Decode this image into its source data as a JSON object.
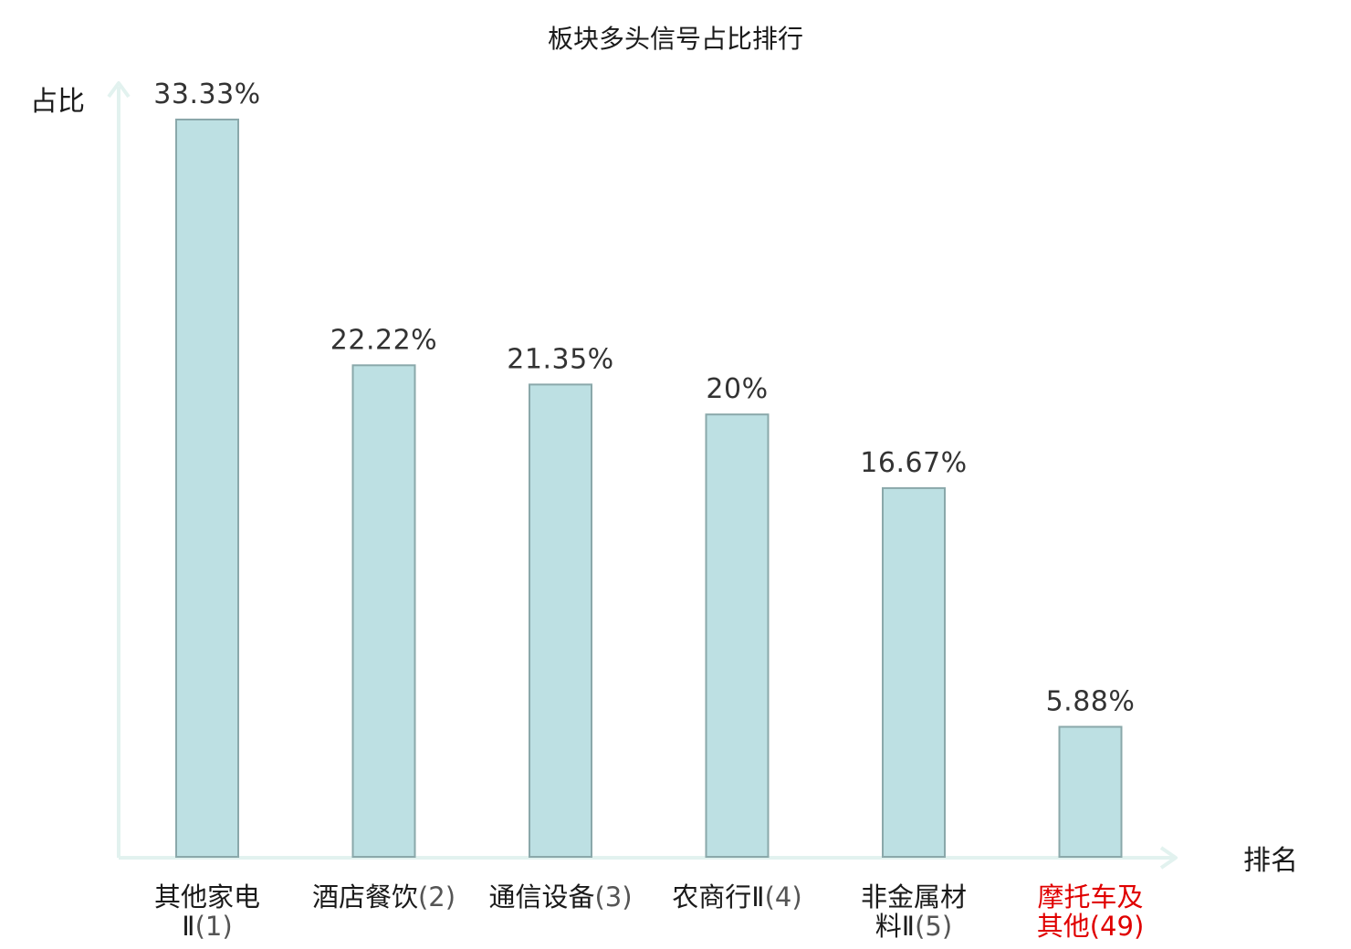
{
  "chart_data": {
    "type": "bar",
    "title": "板块多头信号占比排行",
    "ylabel": "占比",
    "xlabel": "排名",
    "categories": [
      {
        "name_lines": [
          "其他家电",
          "Ⅱ"
        ],
        "rank": "1",
        "highlight": false
      },
      {
        "name_lines": [
          "酒店餐饮"
        ],
        "rank": "2",
        "highlight": false
      },
      {
        "name_lines": [
          "通信设备"
        ],
        "rank": "3",
        "highlight": false
      },
      {
        "name_lines": [
          "农商行Ⅱ"
        ],
        "rank": "4",
        "highlight": false
      },
      {
        "name_lines": [
          "非金属材",
          "料Ⅱ"
        ],
        "rank": "5",
        "highlight": false
      },
      {
        "name_lines": [
          "摩托车及",
          "其他"
        ],
        "rank": "49",
        "highlight": true
      }
    ],
    "values": [
      33.33,
      22.22,
      21.35,
      20,
      16.67,
      5.88
    ],
    "value_labels": [
      "33.33%",
      "22.22%",
      "21.35%",
      "20%",
      "16.67%",
      "5.88%"
    ],
    "ylim": [
      0,
      33.33
    ],
    "grid": false,
    "legend": "none"
  },
  "colors": {
    "bar_fill": "#bde0e3",
    "bar_stroke": "#8aa8aa",
    "axis": "#e2f2ef",
    "text": "#1a1a1a",
    "value_text": "#333333",
    "rank_text": "#555555",
    "highlight": "#e00000"
  }
}
